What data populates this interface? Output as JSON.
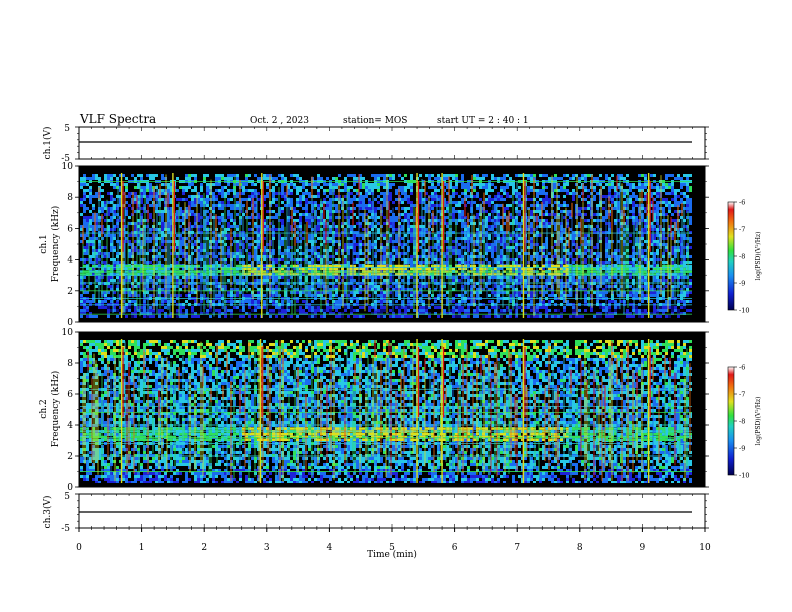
{
  "header": {
    "title": "VLF Spectra",
    "date": "Oct. 2 , 2023",
    "station": "station= MOS",
    "start": "start UT = 2 : 40 : 1"
  },
  "chart_data": [
    {
      "type": "line",
      "name": "ch1-waveform-panel",
      "ylabel": "ch.1(V)",
      "ylim": [
        -5,
        5
      ],
      "y_ticks": [
        "5",
        "-5"
      ],
      "trace_level": 0
    },
    {
      "type": "heatmap",
      "name": "ch1-spectrogram",
      "ylabel": "ch.1\nFrequency (kHz)",
      "ylabel_lines": [
        "ch.1",
        "Frequency (kHz)"
      ],
      "ylim": [
        0,
        10
      ],
      "y_ticks": [
        "0",
        "2",
        "4",
        "6",
        "8",
        "10"
      ],
      "xlim": [
        0,
        10
      ],
      "colorbar": {
        "range": [
          -10,
          -6
        ],
        "ticks": [
          "-6",
          "-7",
          "-8",
          "-9",
          "-10"
        ],
        "label": "log(PSD)(V²/Hz)"
      },
      "horizontal_lines_khz": [
        0.5,
        1.1,
        1.5,
        2.0,
        2.5,
        3.0,
        3.2,
        3.5,
        5.7,
        9.0
      ],
      "band_khz": [
        3.0,
        3.6
      ],
      "strong_spikes_min": [
        0.68,
        1.5,
        2.92,
        5.4,
        5.8,
        7.1,
        9.1
      ]
    },
    {
      "type": "heatmap",
      "name": "ch2-spectrogram",
      "ylabel": "ch.2\nFrequency (kHz)",
      "ylabel_lines": [
        "ch.2",
        "Frequency (kHz)"
      ],
      "ylim": [
        0,
        10
      ],
      "y_ticks": [
        "0",
        "2",
        "4",
        "6",
        "8",
        "10"
      ],
      "xlim": [
        0,
        10
      ],
      "colorbar": {
        "range": [
          -10,
          -6
        ],
        "ticks": [
          "-6",
          "-7",
          "-8",
          "-9",
          "-10"
        ],
        "label": "log(PSD)(V²/Hz)"
      },
      "horizontal_lines_khz": [
        1.0,
        2.0,
        2.8,
        3.2,
        3.6,
        4.0,
        4.8,
        5.2,
        6.3
      ],
      "band_khz": [
        3.0,
        3.9
      ],
      "strong_spikes_min": [
        0.68,
        2.9,
        5.4,
        5.8,
        7.1,
        9.1
      ]
    },
    {
      "type": "line",
      "name": "ch3-waveform-panel",
      "ylabel": "ch.3(V)",
      "ylim": [
        -5,
        5
      ],
      "y_ticks": [
        "5",
        "-5"
      ],
      "trace_level": 0
    }
  ],
  "x_axis": {
    "label": "Time (min)",
    "range": [
      0,
      10
    ],
    "ticks": [
      "0",
      "1",
      "2",
      "3",
      "4",
      "5",
      "6",
      "7",
      "8",
      "9",
      "10"
    ]
  },
  "colors": {
    "background": "#ffffff",
    "plot_bg": "#000000",
    "colormap": [
      "#0a0a78",
      "#1e22d8",
      "#1a6cf0",
      "#28c8e6",
      "#2ee05a",
      "#dde01e",
      "#f06a0a",
      "#e41818",
      "#ffffff"
    ]
  }
}
